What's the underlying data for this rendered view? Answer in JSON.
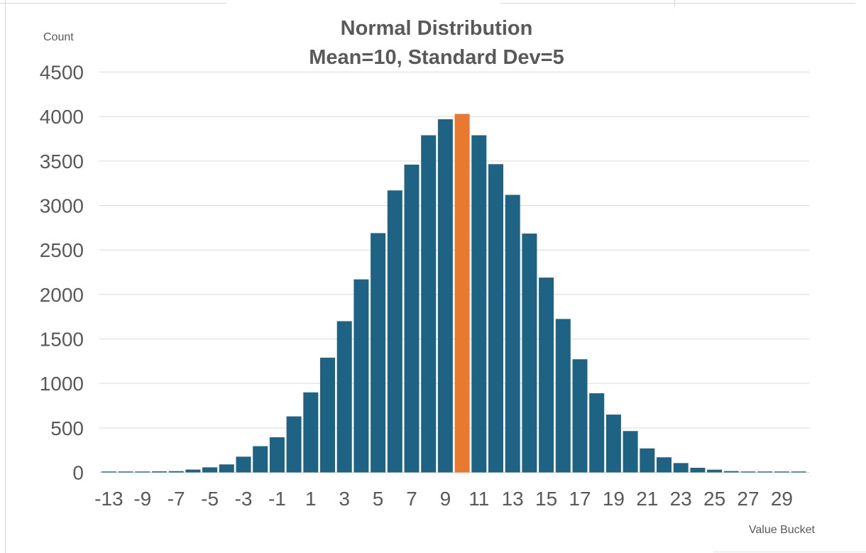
{
  "title": {
    "line1": "Normal Distribution",
    "line2": "Mean=10, Standard Dev=5"
  },
  "axes": {
    "y_title": "Count",
    "x_title": "Value Bucket"
  },
  "colors": {
    "bar": "#1F6384",
    "highlight": "#E8792E",
    "gridline": "#D9D9D9",
    "text": "#595959",
    "background": "#FFFFFF",
    "sheet_gridline": "#D6D6D6"
  },
  "chart_data": {
    "type": "bar",
    "title": "Normal Distribution",
    "subtitle": "Mean=10, Standard Dev=5",
    "xlabel": "Value Bucket",
    "ylabel": "Count",
    "ylim": [
      0,
      4500
    ],
    "ytick_interval": 500,
    "yticks": [
      0,
      500,
      1000,
      1500,
      2000,
      2500,
      3000,
      3500,
      4000,
      4500
    ],
    "grid": true,
    "legend": false,
    "categories": [
      -13,
      -11,
      -9,
      -8,
      -7,
      -6,
      -5,
      -4,
      -3,
      -2,
      -1,
      0,
      1,
      2,
      3,
      4,
      5,
      6,
      7,
      8,
      9,
      10,
      11,
      12,
      13,
      14,
      15,
      16,
      17,
      18,
      19,
      20,
      21,
      22,
      23,
      24,
      25,
      26,
      27,
      28,
      29,
      30
    ],
    "values": [
      10,
      10,
      10,
      12,
      14,
      32,
      57,
      90,
      177,
      295,
      395,
      630,
      900,
      1290,
      1700,
      2170,
      2690,
      3170,
      3460,
      3790,
      3970,
      4030,
      3790,
      3465,
      3120,
      2685,
      2190,
      1725,
      1272,
      890,
      650,
      465,
      270,
      170,
      105,
      52,
      31,
      15,
      8,
      6,
      5,
      4
    ],
    "xtick_labels_shown": [
      "-13",
      "-9",
      "-7",
      "-5",
      "-3",
      "-1",
      "1",
      "3",
      "5",
      "7",
      "9",
      "11",
      "13",
      "15",
      "17",
      "19",
      "21",
      "23",
      "25",
      "27",
      "29"
    ],
    "xtick_label_every_n_bars": 2,
    "highlight": {
      "category": 10,
      "color": "#E8792E",
      "meaning": "bar at the mean value"
    },
    "bar_color": "#1F6384"
  }
}
